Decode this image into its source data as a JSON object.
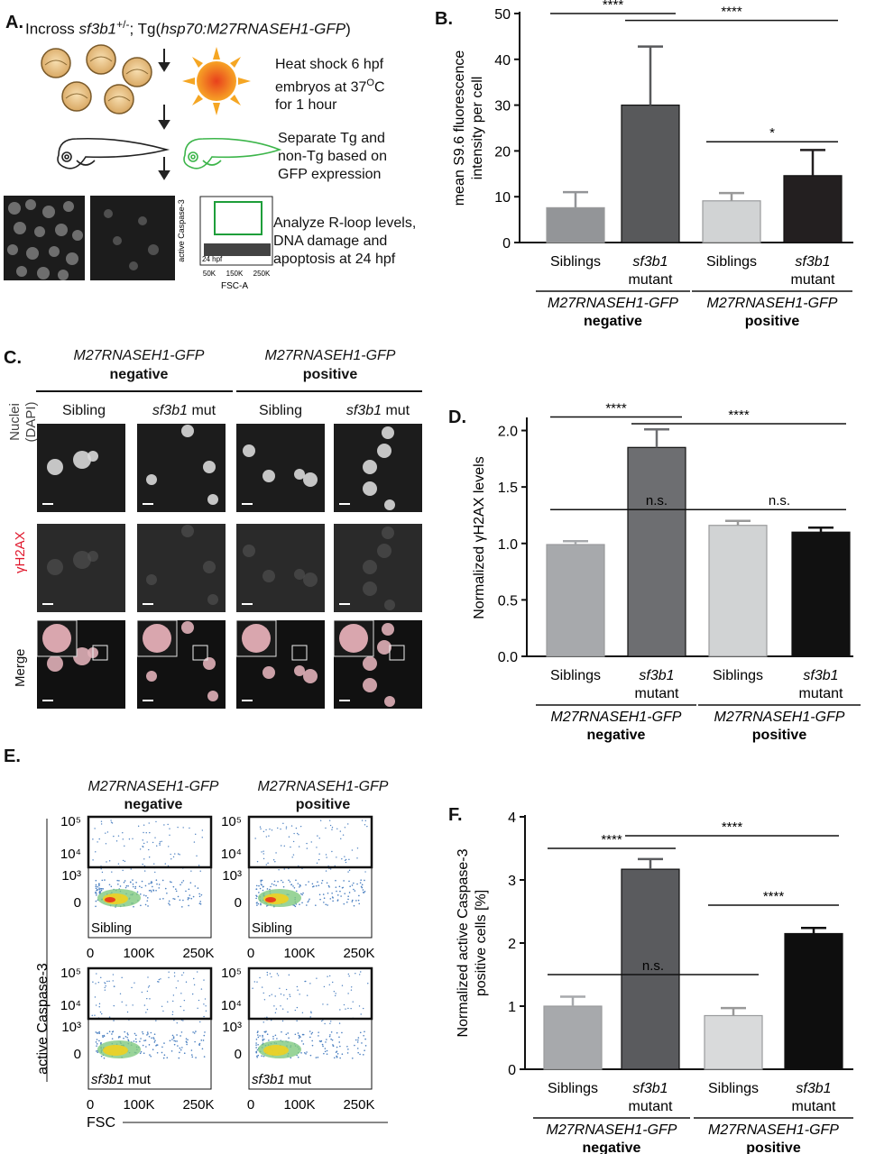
{
  "panelA": {
    "label": "A.",
    "title_pre": "Incross ",
    "title_gene": "sf3b1",
    "title_sup": "+/-",
    "title_mid": "; Tg(",
    "title_tg": "hsp70:M27RNASEH1-GFP",
    "title_post": ")",
    "step1_l1": "Heat shock 6 hpf",
    "step1_l2": "embryos at 37",
    "step1_sup": "O",
    "step1_l2b": "C",
    "step1_l3": "for 1 hour",
    "step2_l1": "Separate Tg and",
    "step2_l2": "non-Tg based on",
    "step2_l3": "GFP expression",
    "step3_l1": "Analyze R-loop levels,",
    "step3_l2": "DNA damage and",
    "step3_l3": "apoptosis at 24 hpf",
    "mini_ylabel": "active Caspase-3",
    "mini_xlabel": "FSC-A",
    "mini_xticks": [
      "50K",
      "150K",
      "250K"
    ],
    "mini_note": "24 hpf",
    "colors": {
      "sun": "#f5a623",
      "sun_core": "#e8401c",
      "embryo_green": "#3cb54a",
      "gate_green": "#1e9e3a"
    }
  },
  "panelC": {
    "label": "C.",
    "group_neg_gene": "M27RNASEH1-GFP",
    "group_neg": "negative",
    "group_pos_gene": "M27RNASEH1-GFP",
    "group_pos": "positive",
    "col_sibling": "Sibling",
    "col_mut_gene": "sf3b1",
    "col_mut": " mut",
    "row1_l1": "Nuclei",
    "row1_l2": "(DAPI)",
    "row2": "γH2AX",
    "row3": "Merge",
    "row2_color": "#e0182d"
  },
  "panelE": {
    "label": "E.",
    "group_neg_gene": "M27RNASEH1-GFP",
    "group_neg": "negative",
    "group_pos_gene": "M27RNASEH1-GFP",
    "group_pos": "positive",
    "ylabel": "active Caspase-3",
    "xlabel": "FSC",
    "yticks": [
      "10⁵",
      "10⁴",
      "10³",
      "0"
    ],
    "xticks": [
      "0",
      "100K",
      "250K"
    ],
    "tag_sibling": "Sibling",
    "tag_mut_gene": "sf3b1",
    "tag_mut": " mut"
  },
  "chart_data": [
    {
      "id": "B",
      "label": "B.",
      "type": "bar",
      "categories": [
        "Siblings",
        "sf3b1 mutant",
        "Siblings",
        "sf3b1 mutant"
      ],
      "cat_line1": [
        "Siblings",
        "sf3b1",
        "Siblings",
        "sf3b1"
      ],
      "cat_line2": [
        "",
        "mutant",
        "",
        "mutant"
      ],
      "values": [
        7.6,
        30.0,
        9.1,
        14.6
      ],
      "errors": [
        3.4,
        12.8,
        1.7,
        5.6
      ],
      "colors": [
        "#939598",
        "#58595b",
        "#d1d3d4",
        "#231f20"
      ],
      "ylabel_l1": "mean S9.6 fluorescence",
      "ylabel_l2": "intensity per cell",
      "ylim": [
        0,
        50
      ],
      "yticks": [
        0,
        10,
        20,
        30,
        40,
        50
      ],
      "group_gene": [
        "M27RNASEH1-GFP",
        "M27RNASEH1-GFP"
      ],
      "group_label": [
        "negative",
        "positive"
      ],
      "significance": [
        {
          "from": 0,
          "to": 1,
          "label": "****",
          "y": 50
        },
        {
          "from": 1,
          "to": 3,
          "label": "****",
          "y": 48.5
        },
        {
          "from": 2,
          "to": 3,
          "label": "*",
          "y": 22
        }
      ]
    },
    {
      "id": "D",
      "label": "D.",
      "type": "bar",
      "categories": [
        "Siblings",
        "sf3b1 mutant",
        "Siblings",
        "sf3b1 mutant"
      ],
      "cat_line1": [
        "Siblings",
        "sf3b1",
        "Siblings",
        "sf3b1"
      ],
      "cat_line2": [
        "",
        "mutant",
        "",
        "mutant"
      ],
      "values": [
        0.99,
        1.85,
        1.16,
        1.1
      ],
      "errors": [
        0.03,
        0.16,
        0.04,
        0.04
      ],
      "colors": [
        "#a7a9ac",
        "#6d6e71",
        "#d1d3d4",
        "#111111"
      ],
      "ylabel_pre": "Normalized ",
      "ylabel_gamma": "γ",
      "ylabel_post": "H2AX levels",
      "ylim": [
        0,
        2.1
      ],
      "yticks": [
        "0.0",
        "0.5",
        "1.0",
        "1.5",
        "2.0"
      ],
      "ytick_values": [
        0,
        0.5,
        1.0,
        1.5,
        2.0
      ],
      "group_gene": [
        "M27RNASEH1-GFP",
        "M27RNASEH1-GFP"
      ],
      "group_label": [
        "negative",
        "positive"
      ],
      "significance": [
        {
          "from": 0,
          "to": 1,
          "label": "****",
          "y": 2.12
        },
        {
          "from": 1,
          "to": 3,
          "label": "****",
          "y": 2.06
        },
        {
          "from": 0,
          "to": 2,
          "label": "n.s.",
          "y": 1.3
        },
        {
          "from": 2,
          "to": 3,
          "label": "n.s.",
          "y": 1.3
        }
      ]
    },
    {
      "id": "F",
      "label": "F.",
      "type": "bar",
      "categories": [
        "Siblings",
        "sf3b1 mutant",
        "Siblings",
        "sf3b1 mutant"
      ],
      "cat_line1": [
        "Siblings",
        "sf3b1",
        "Siblings",
        "sf3b1"
      ],
      "cat_line2": [
        "",
        "mutant",
        "",
        "mutant"
      ],
      "values": [
        1.0,
        3.17,
        0.85,
        2.15
      ],
      "errors": [
        0.15,
        0.16,
        0.12,
        0.09
      ],
      "colors": [
        "#a7a9ac",
        "#5a5b5e",
        "#d9dadb",
        "#0e0e0e"
      ],
      "ylabel_l1": "Normalized active Caspase-3",
      "ylabel_l2": "positive cells [%]",
      "ylim": [
        0,
        4
      ],
      "yticks": [
        0,
        1,
        2,
        3,
        4
      ],
      "group_gene": [
        "M27RNASEH1-GFP",
        "M27RNASEH1-GFP"
      ],
      "group_label": [
        "negative",
        "positive"
      ],
      "significance": [
        {
          "from": 0,
          "to": 1,
          "label": "****",
          "y": 3.5
        },
        {
          "from": 1,
          "to": 3,
          "label": "****",
          "y": 3.7
        },
        {
          "from": 2,
          "to": 3,
          "label": "****",
          "y": 2.6
        },
        {
          "from": 0,
          "to": 2,
          "label": "n.s.",
          "y": 1.5
        }
      ]
    }
  ]
}
